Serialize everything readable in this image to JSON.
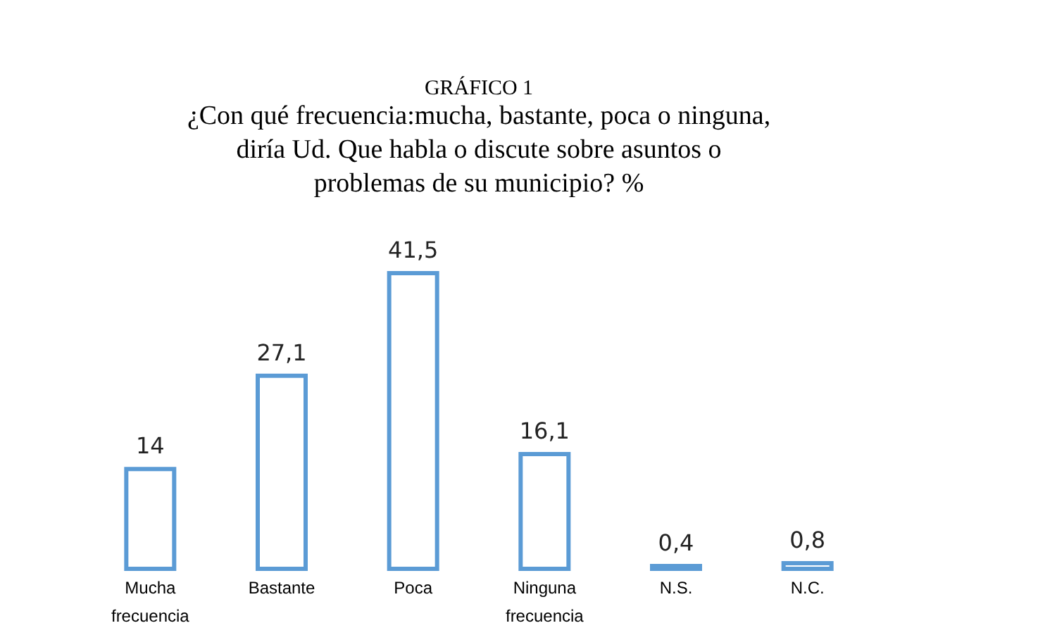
{
  "chart_data": {
    "type": "bar",
    "title": "GRÁFICO 1",
    "subtitle": "¿Con qué frecuencia:mucha, bastante, poca o ninguna, diría Ud. Que habla o discute sobre asuntos o problemas de su municipio? %",
    "categories": [
      "Mucha frecuencia",
      "Bastante",
      "Poca",
      "Ninguna frecuencia",
      "N.S.",
      "N.C."
    ],
    "values": [
      14,
      27.1,
      41.5,
      16.1,
      0.4,
      0.8
    ],
    "value_labels": [
      "14",
      "27,1",
      "41,5",
      "16,1",
      "0,4",
      "0,8"
    ],
    "color": "#5b9bd5"
  }
}
